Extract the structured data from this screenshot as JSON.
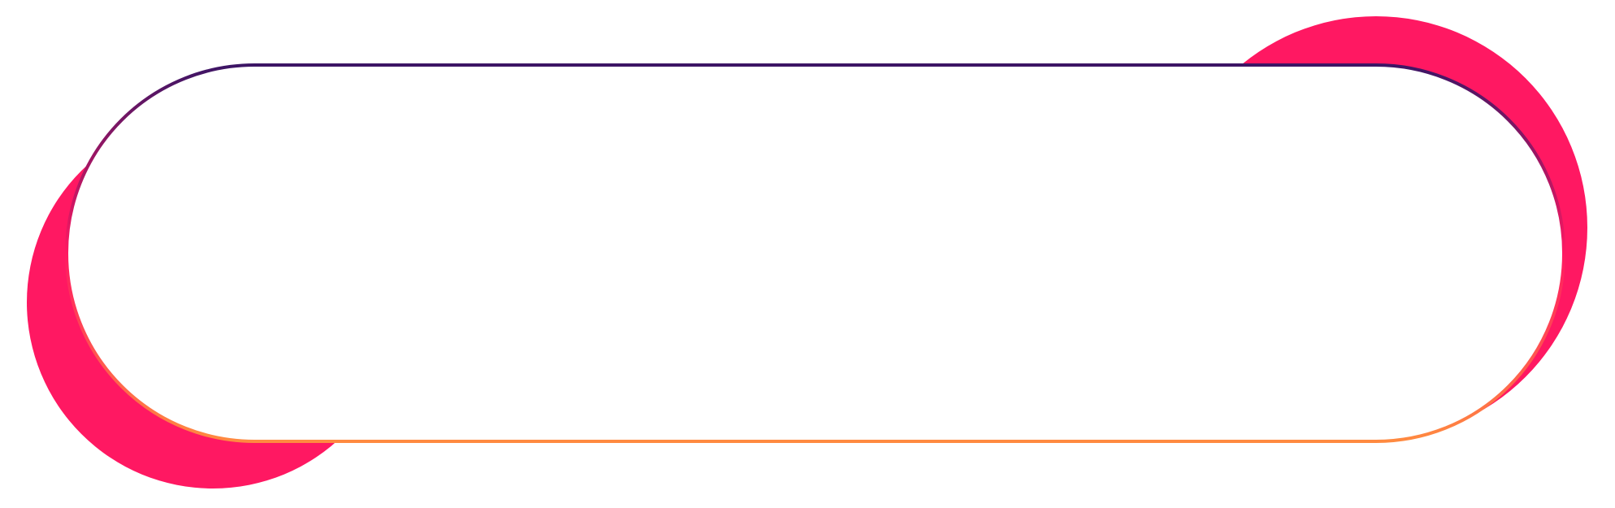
{
  "colors": {
    "background": "#ffffff",
    "circle_fill": "#FF1862",
    "circle_fill_shadow": "#F5175E",
    "border_gradient_top": "#3C1565",
    "border_gradient_mid": "#FF1862",
    "border_gradient_bottom": "#FF8A40",
    "capsule_fill": "#ffffff"
  },
  "shapes": {
    "left_circle": "pink-circle",
    "right_circle": "pink-circle",
    "capsule": "rounded-capsule-outline"
  }
}
